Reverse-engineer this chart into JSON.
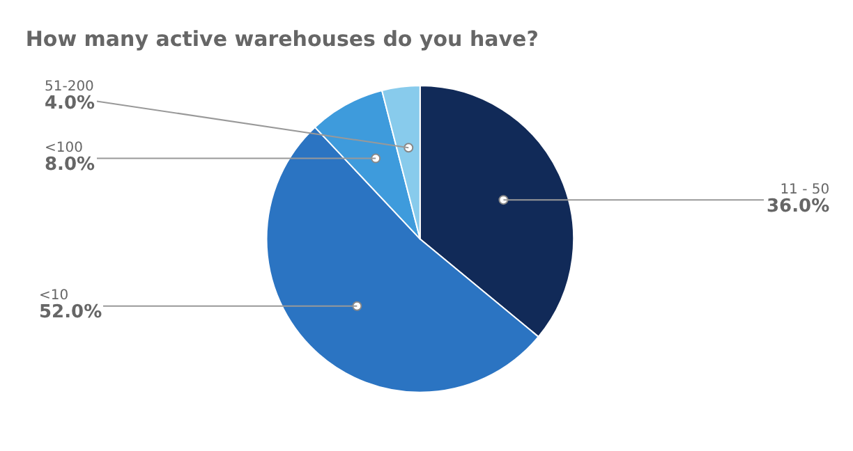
{
  "chart_data": {
    "type": "pie",
    "title": "How many active warehouses do you have?",
    "categories": [
      "11 - 50",
      "<10",
      "<100",
      "51-200"
    ],
    "values": [
      36,
      52,
      8,
      4
    ],
    "colors": [
      "#112a58",
      "#2b74c2",
      "#3e9bdc",
      "#88cbec"
    ],
    "value_labels": [
      "36.0%",
      "52.0%",
      "8.0%",
      "4.0%"
    ],
    "legend": false
  }
}
